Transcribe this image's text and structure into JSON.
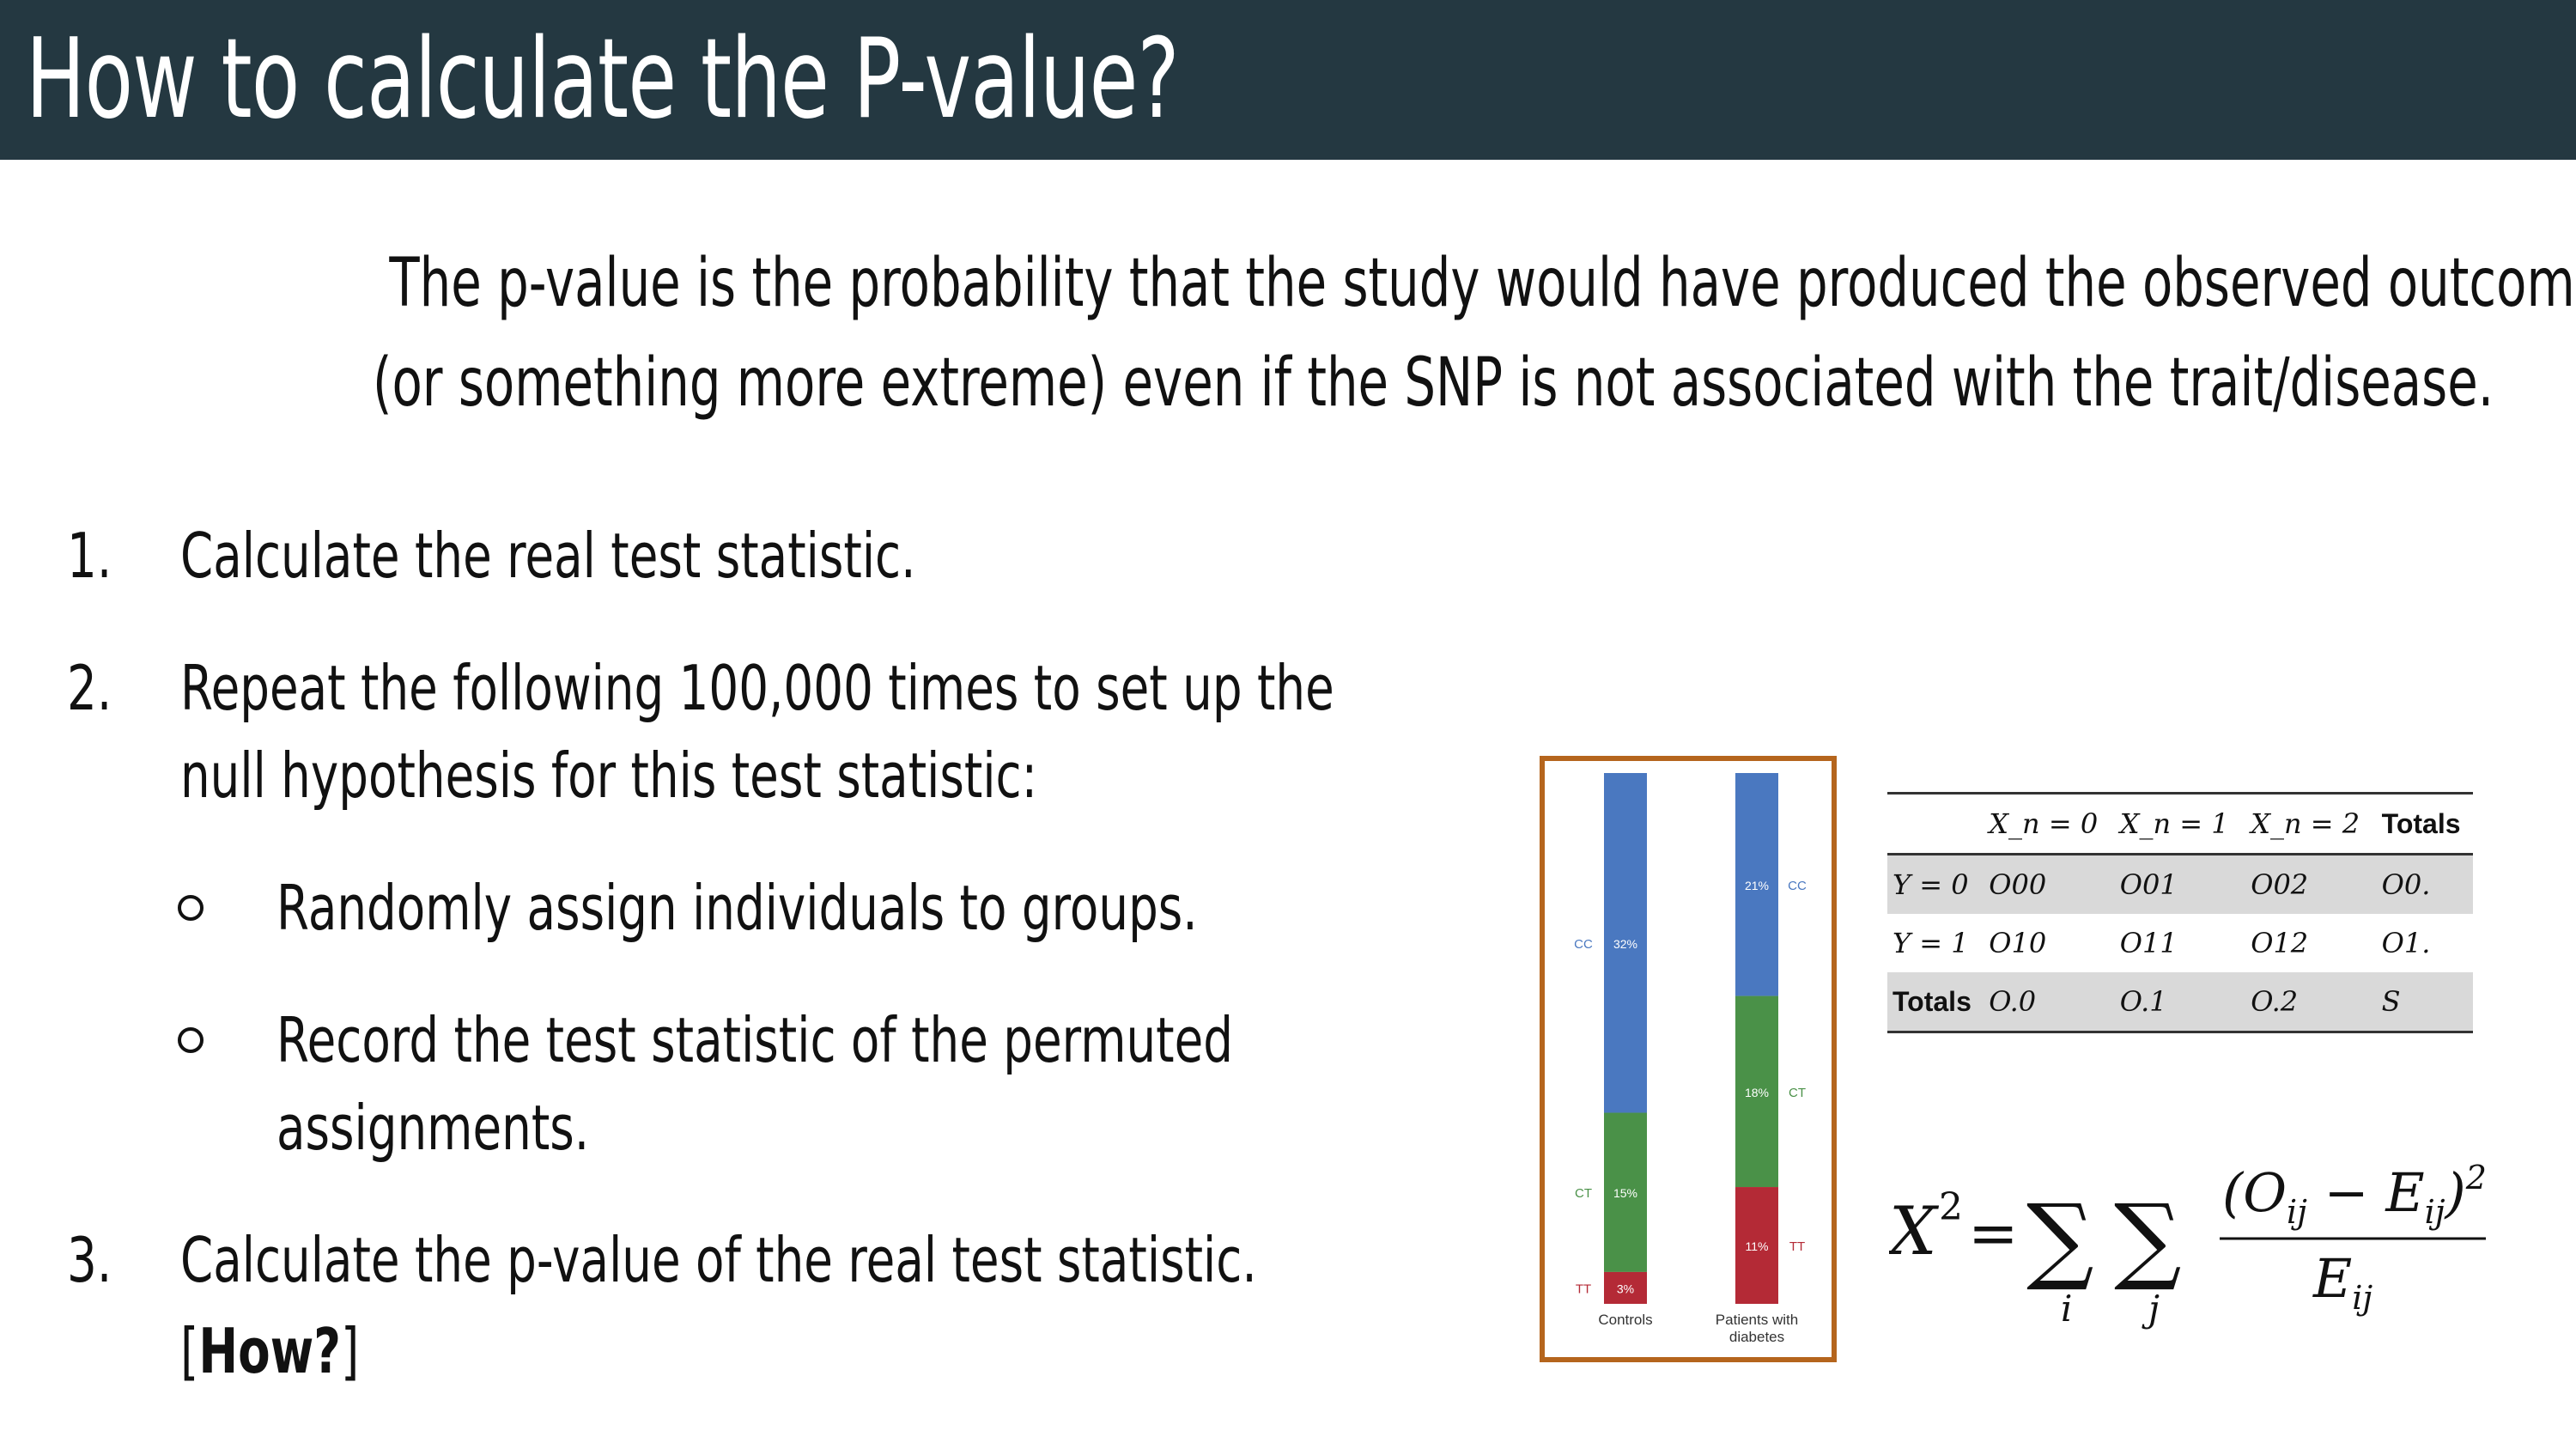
{
  "slide": {
    "title": "How to calculate the P-value?",
    "definition_line1": "The p-value is the probability that the study would have produced the observed outcome",
    "definition_line2": "(or something more extreme) even if the SNP is not associated with the trait/disease.",
    "steps": [
      {
        "number": "1.",
        "text": "Calculate the real test statistic."
      },
      {
        "number": "2.",
        "line1": "Repeat the following 100,000 times to set up the",
        "line2": "null hypothesis for this test statistic:"
      },
      {
        "number": "3.",
        "line1": "Calculate the p-value of the real test statistic.",
        "bracket_open": "[",
        "link_text": "How?",
        "bracket_close": "]"
      }
    ],
    "subbullets": [
      {
        "text": "Randomly assign individuals to groups."
      },
      {
        "line1": "Record the test statistic of the permuted",
        "line2": "assignments."
      }
    ]
  },
  "chart_data": {
    "type": "bar",
    "stacked": true,
    "categories": [
      "Controls",
      "Patients with diabetes"
    ],
    "series": [
      {
        "name": "CC",
        "values": [
          32,
          21
        ],
        "color": "#4a78c0"
      },
      {
        "name": "CT",
        "values": [
          15,
          18
        ],
        "color": "#4a9148"
      },
      {
        "name": "TT",
        "values": [
          3,
          11
        ],
        "color": "#b42a36"
      }
    ],
    "data_labels": [
      [
        "32%",
        "15%",
        "3%"
      ],
      [
        "21%",
        "18%",
        "11%"
      ]
    ],
    "category_labels": [
      "Controls",
      "Patients with",
      "diabetes"
    ]
  },
  "table": {
    "header": [
      "",
      "X_n = 0",
      "X_n = 1",
      "X_n = 2",
      "Totals"
    ],
    "rows": [
      [
        "Y = 0",
        "O00",
        "O01",
        "O02",
        "O0."
      ],
      [
        "Y = 1",
        "O10",
        "O11",
        "O12",
        "O1."
      ],
      [
        "Totals",
        "O.0",
        "O.1",
        "O.2",
        "S"
      ]
    ]
  },
  "formula": {
    "lhs": "X",
    "lhs_sup": "2",
    "equals": "=",
    "sigma": "∑",
    "index_i": "i",
    "index_j": "j",
    "numerator": "(O",
    "num_sub1": "ij",
    "num_minus": " − E",
    "num_sub2": "ij",
    "num_close": ")",
    "num_sup": "2",
    "denominator": "E",
    "den_sub": "ij"
  },
  "colors": {
    "title_bg": "#243841",
    "frame": "#b5651d",
    "cc": "#4a78c0",
    "ct": "#4a9148",
    "tt": "#b42a36",
    "table_shade": "#d9d9d9"
  }
}
